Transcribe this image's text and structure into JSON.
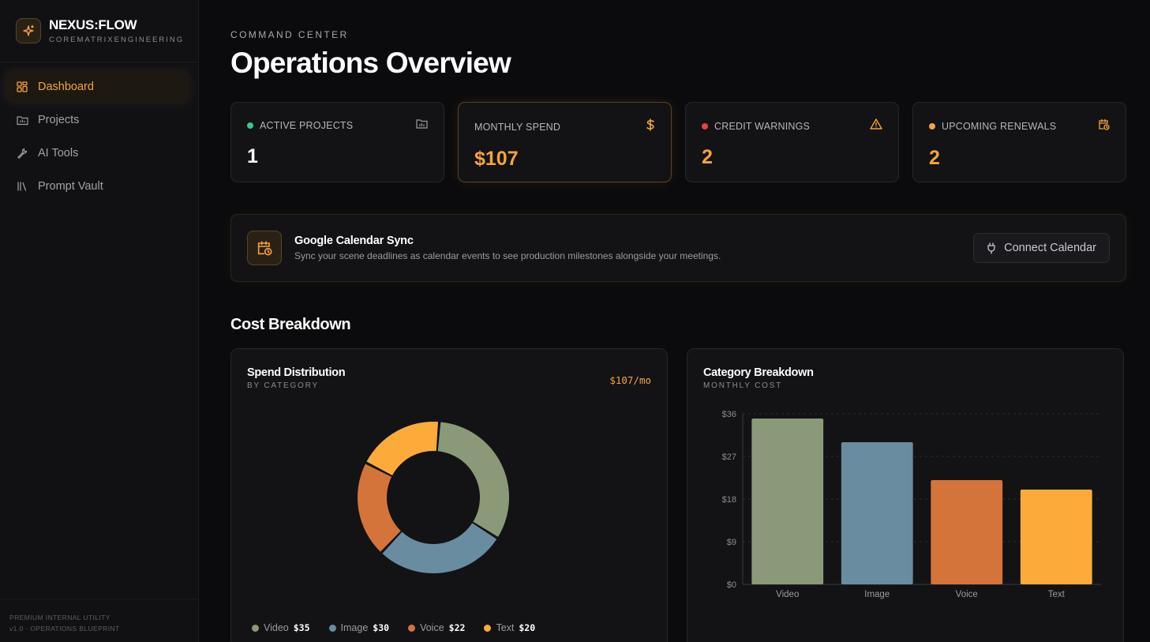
{
  "brand": {
    "name": "NEXUS:FLOW",
    "subtitle": "COREMATRIXENGINEERING",
    "logo_icon": "sparkle-icon"
  },
  "nav": [
    {
      "label": "Dashboard",
      "icon": "grid-icon",
      "active": true
    },
    {
      "label": "Projects",
      "icon": "folder-icon",
      "active": false
    },
    {
      "label": "AI Tools",
      "icon": "wrench-icon",
      "active": false
    },
    {
      "label": "Prompt Vault",
      "icon": "library-icon",
      "active": false
    }
  ],
  "footer": {
    "line1": "PREMIUM INTERNAL UTILITY",
    "line2": "v1.0 · OPERATIONS BLUEPRINT"
  },
  "header": {
    "eyebrow": "COMMAND CENTER",
    "title": "Operations Overview"
  },
  "stats": [
    {
      "label": "ACTIVE PROJECTS",
      "value": "1",
      "dot_color": "#34c98a",
      "value_color": "#ffffff",
      "icon": "folder-icon"
    },
    {
      "label": "MONTHLY SPEND",
      "value": "$107",
      "dot_color": "",
      "value_color": "#f5a43a",
      "icon": "dollar-icon"
    },
    {
      "label": "CREDIT WARNINGS",
      "value": "2",
      "dot_color": "#e5443c",
      "value_color": "#f5a43a",
      "icon": "warning-icon"
    },
    {
      "label": "UPCOMING RENEWALS",
      "value": "2",
      "dot_color": "#f5a43a",
      "value_color": "#f5a43a",
      "icon": "calendar-clock-icon"
    }
  ],
  "sync": {
    "title": "Google Calendar Sync",
    "description": "Sync your scene deadlines as calendar events to see production milestones alongside your meetings.",
    "button_label": "Connect Calendar"
  },
  "cost_section_title": "Cost Breakdown",
  "spend_panel": {
    "title": "Spend Distribution",
    "subtitle": "BY CATEGORY",
    "badge": "$107/mo"
  },
  "category_panel": {
    "title": "Category Breakdown",
    "subtitle": "MONTHLY COST"
  },
  "colors": {
    "accent": "#f5a43a",
    "video": "#8a9a78",
    "image": "#6a8ca0",
    "voice": "#d4743a",
    "text": "#fcab3a"
  },
  "chart_data": [
    {
      "type": "pie",
      "title": "Spend Distribution",
      "categories": [
        "Video",
        "Image",
        "Voice",
        "Text"
      ],
      "values": [
        35,
        30,
        22,
        20
      ],
      "value_labels": [
        "$35",
        "$30",
        "$22",
        "$20"
      ],
      "colors": [
        "#8a9a78",
        "#6a8ca0",
        "#d4743a",
        "#fcab3a"
      ],
      "donut": true
    },
    {
      "type": "bar",
      "title": "Category Breakdown",
      "categories": [
        "Video",
        "Image",
        "Voice",
        "Text"
      ],
      "values": [
        35,
        30,
        22,
        20
      ],
      "colors": [
        "#8a9a78",
        "#6a8ca0",
        "#d4743a",
        "#fcab3a"
      ],
      "ylim": [
        0,
        36
      ],
      "yticks": [
        0,
        9,
        18,
        27,
        36
      ],
      "ytick_labels": [
        "$0",
        "$9",
        "$18",
        "$27",
        "$36"
      ],
      "grid": true
    }
  ]
}
